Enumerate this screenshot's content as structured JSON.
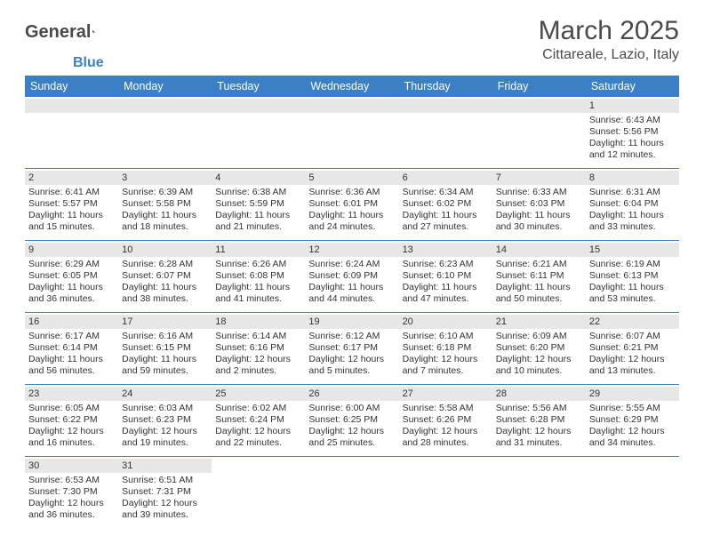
{
  "logo": {
    "text1": "General",
    "text2": "Blue"
  },
  "title": "March 2025",
  "location": "Cittareale, Lazio, Italy",
  "colors": {
    "header_bg": "#3b7fc4",
    "header_text": "#ffffff",
    "daynum_bg": "#e7e7e7",
    "border": "#3b7fc4",
    "logo_gray": "#4a4a4a",
    "logo_blue": "#3b7fc4"
  },
  "day_headers": [
    "Sunday",
    "Monday",
    "Tuesday",
    "Wednesday",
    "Thursday",
    "Friday",
    "Saturday"
  ],
  "weeks": [
    [
      {
        "n": "",
        "sr": "",
        "ss": "",
        "dl1": "",
        "dl2": "",
        "empty": true
      },
      {
        "n": "",
        "sr": "",
        "ss": "",
        "dl1": "",
        "dl2": "",
        "empty": true
      },
      {
        "n": "",
        "sr": "",
        "ss": "",
        "dl1": "",
        "dl2": "",
        "empty": true
      },
      {
        "n": "",
        "sr": "",
        "ss": "",
        "dl1": "",
        "dl2": "",
        "empty": true
      },
      {
        "n": "",
        "sr": "",
        "ss": "",
        "dl1": "",
        "dl2": "",
        "empty": true
      },
      {
        "n": "",
        "sr": "",
        "ss": "",
        "dl1": "",
        "dl2": "",
        "empty": true
      },
      {
        "n": "1",
        "sr": "Sunrise: 6:43 AM",
        "ss": "Sunset: 5:56 PM",
        "dl1": "Daylight: 11 hours",
        "dl2": "and 12 minutes."
      }
    ],
    [
      {
        "n": "2",
        "sr": "Sunrise: 6:41 AM",
        "ss": "Sunset: 5:57 PM",
        "dl1": "Daylight: 11 hours",
        "dl2": "and 15 minutes."
      },
      {
        "n": "3",
        "sr": "Sunrise: 6:39 AM",
        "ss": "Sunset: 5:58 PM",
        "dl1": "Daylight: 11 hours",
        "dl2": "and 18 minutes."
      },
      {
        "n": "4",
        "sr": "Sunrise: 6:38 AM",
        "ss": "Sunset: 5:59 PM",
        "dl1": "Daylight: 11 hours",
        "dl2": "and 21 minutes."
      },
      {
        "n": "5",
        "sr": "Sunrise: 6:36 AM",
        "ss": "Sunset: 6:01 PM",
        "dl1": "Daylight: 11 hours",
        "dl2": "and 24 minutes."
      },
      {
        "n": "6",
        "sr": "Sunrise: 6:34 AM",
        "ss": "Sunset: 6:02 PM",
        "dl1": "Daylight: 11 hours",
        "dl2": "and 27 minutes."
      },
      {
        "n": "7",
        "sr": "Sunrise: 6:33 AM",
        "ss": "Sunset: 6:03 PM",
        "dl1": "Daylight: 11 hours",
        "dl2": "and 30 minutes."
      },
      {
        "n": "8",
        "sr": "Sunrise: 6:31 AM",
        "ss": "Sunset: 6:04 PM",
        "dl1": "Daylight: 11 hours",
        "dl2": "and 33 minutes."
      }
    ],
    [
      {
        "n": "9",
        "sr": "Sunrise: 6:29 AM",
        "ss": "Sunset: 6:05 PM",
        "dl1": "Daylight: 11 hours",
        "dl2": "and 36 minutes."
      },
      {
        "n": "10",
        "sr": "Sunrise: 6:28 AM",
        "ss": "Sunset: 6:07 PM",
        "dl1": "Daylight: 11 hours",
        "dl2": "and 38 minutes."
      },
      {
        "n": "11",
        "sr": "Sunrise: 6:26 AM",
        "ss": "Sunset: 6:08 PM",
        "dl1": "Daylight: 11 hours",
        "dl2": "and 41 minutes."
      },
      {
        "n": "12",
        "sr": "Sunrise: 6:24 AM",
        "ss": "Sunset: 6:09 PM",
        "dl1": "Daylight: 11 hours",
        "dl2": "and 44 minutes."
      },
      {
        "n": "13",
        "sr": "Sunrise: 6:23 AM",
        "ss": "Sunset: 6:10 PM",
        "dl1": "Daylight: 11 hours",
        "dl2": "and 47 minutes."
      },
      {
        "n": "14",
        "sr": "Sunrise: 6:21 AM",
        "ss": "Sunset: 6:11 PM",
        "dl1": "Daylight: 11 hours",
        "dl2": "and 50 minutes."
      },
      {
        "n": "15",
        "sr": "Sunrise: 6:19 AM",
        "ss": "Sunset: 6:13 PM",
        "dl1": "Daylight: 11 hours",
        "dl2": "and 53 minutes."
      }
    ],
    [
      {
        "n": "16",
        "sr": "Sunrise: 6:17 AM",
        "ss": "Sunset: 6:14 PM",
        "dl1": "Daylight: 11 hours",
        "dl2": "and 56 minutes."
      },
      {
        "n": "17",
        "sr": "Sunrise: 6:16 AM",
        "ss": "Sunset: 6:15 PM",
        "dl1": "Daylight: 11 hours",
        "dl2": "and 59 minutes."
      },
      {
        "n": "18",
        "sr": "Sunrise: 6:14 AM",
        "ss": "Sunset: 6:16 PM",
        "dl1": "Daylight: 12 hours",
        "dl2": "and 2 minutes."
      },
      {
        "n": "19",
        "sr": "Sunrise: 6:12 AM",
        "ss": "Sunset: 6:17 PM",
        "dl1": "Daylight: 12 hours",
        "dl2": "and 5 minutes."
      },
      {
        "n": "20",
        "sr": "Sunrise: 6:10 AM",
        "ss": "Sunset: 6:18 PM",
        "dl1": "Daylight: 12 hours",
        "dl2": "and 7 minutes."
      },
      {
        "n": "21",
        "sr": "Sunrise: 6:09 AM",
        "ss": "Sunset: 6:20 PM",
        "dl1": "Daylight: 12 hours",
        "dl2": "and 10 minutes."
      },
      {
        "n": "22",
        "sr": "Sunrise: 6:07 AM",
        "ss": "Sunset: 6:21 PM",
        "dl1": "Daylight: 12 hours",
        "dl2": "and 13 minutes."
      }
    ],
    [
      {
        "n": "23",
        "sr": "Sunrise: 6:05 AM",
        "ss": "Sunset: 6:22 PM",
        "dl1": "Daylight: 12 hours",
        "dl2": "and 16 minutes."
      },
      {
        "n": "24",
        "sr": "Sunrise: 6:03 AM",
        "ss": "Sunset: 6:23 PM",
        "dl1": "Daylight: 12 hours",
        "dl2": "and 19 minutes."
      },
      {
        "n": "25",
        "sr": "Sunrise: 6:02 AM",
        "ss": "Sunset: 6:24 PM",
        "dl1": "Daylight: 12 hours",
        "dl2": "and 22 minutes."
      },
      {
        "n": "26",
        "sr": "Sunrise: 6:00 AM",
        "ss": "Sunset: 6:25 PM",
        "dl1": "Daylight: 12 hours",
        "dl2": "and 25 minutes."
      },
      {
        "n": "27",
        "sr": "Sunrise: 5:58 AM",
        "ss": "Sunset: 6:26 PM",
        "dl1": "Daylight: 12 hours",
        "dl2": "and 28 minutes."
      },
      {
        "n": "28",
        "sr": "Sunrise: 5:56 AM",
        "ss": "Sunset: 6:28 PM",
        "dl1": "Daylight: 12 hours",
        "dl2": "and 31 minutes."
      },
      {
        "n": "29",
        "sr": "Sunrise: 5:55 AM",
        "ss": "Sunset: 6:29 PM",
        "dl1": "Daylight: 12 hours",
        "dl2": "and 34 minutes."
      }
    ],
    [
      {
        "n": "30",
        "sr": "Sunrise: 6:53 AM",
        "ss": "Sunset: 7:30 PM",
        "dl1": "Daylight: 12 hours",
        "dl2": "and 36 minutes."
      },
      {
        "n": "31",
        "sr": "Sunrise: 6:51 AM",
        "ss": "Sunset: 7:31 PM",
        "dl1": "Daylight: 12 hours",
        "dl2": "and 39 minutes."
      },
      {
        "n": "",
        "sr": "",
        "ss": "",
        "dl1": "",
        "dl2": "",
        "empty": true
      },
      {
        "n": "",
        "sr": "",
        "ss": "",
        "dl1": "",
        "dl2": "",
        "empty": true
      },
      {
        "n": "",
        "sr": "",
        "ss": "",
        "dl1": "",
        "dl2": "",
        "empty": true
      },
      {
        "n": "",
        "sr": "",
        "ss": "",
        "dl1": "",
        "dl2": "",
        "empty": true
      },
      {
        "n": "",
        "sr": "",
        "ss": "",
        "dl1": "",
        "dl2": "",
        "empty": true
      }
    ]
  ]
}
